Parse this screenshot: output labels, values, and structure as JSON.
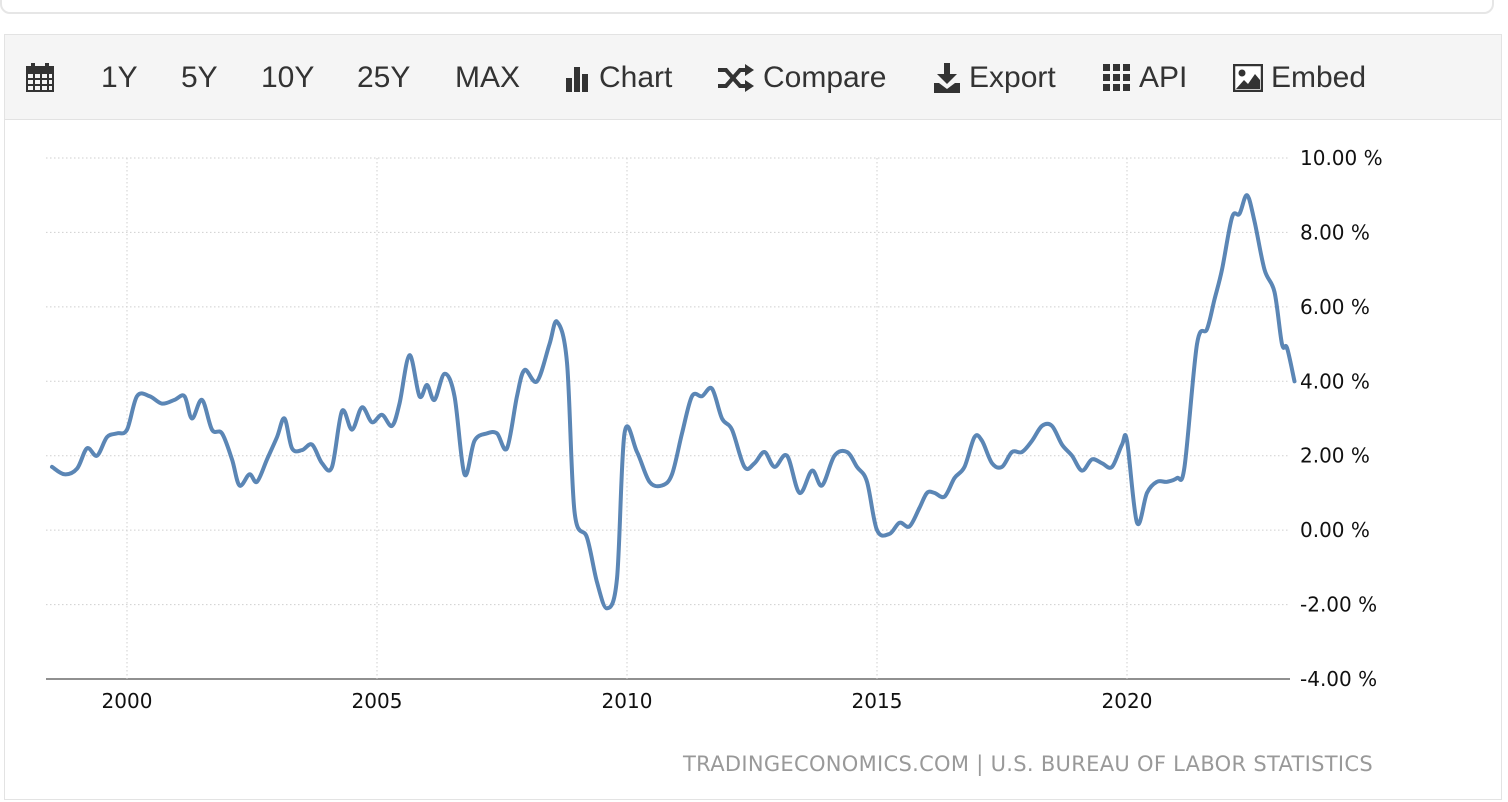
{
  "toolbar": {
    "calendar_icon": "calendar-icon",
    "items": [
      {
        "label": "1Y"
      },
      {
        "label": "5Y"
      },
      {
        "label": "10Y"
      },
      {
        "label": "25Y"
      },
      {
        "label": "MAX"
      },
      {
        "label": "Chart",
        "icon": "bar-chart-icon"
      },
      {
        "label": "Compare",
        "icon": "shuffle-icon"
      },
      {
        "label": "Export",
        "icon": "download-icon"
      },
      {
        "label": "API",
        "icon": "grid-icon"
      },
      {
        "label": "Embed",
        "icon": "image-icon"
      }
    ]
  },
  "chart_data": {
    "type": "line",
    "color": "#5b86b5",
    "ylim": [
      -4,
      10
    ],
    "xlim": [
      1998.5,
      2023.35
    ],
    "y_ticks": [
      {
        "value": 10,
        "label": "10.00 %"
      },
      {
        "value": 8,
        "label": "8.00 %"
      },
      {
        "value": 6,
        "label": "6.00 %"
      },
      {
        "value": 4,
        "label": "4.00 %"
      },
      {
        "value": 2,
        "label": "2.00 %"
      },
      {
        "value": 0,
        "label": "0.00 %"
      },
      {
        "value": -2,
        "label": "-2.00 %"
      },
      {
        "value": -4,
        "label": "-4.00 %"
      }
    ],
    "x_ticks": [
      {
        "value": 2000,
        "label": "2000"
      },
      {
        "value": 2005,
        "label": "2005"
      },
      {
        "value": 2010,
        "label": "2010"
      },
      {
        "value": 2015,
        "label": "2015"
      },
      {
        "value": 2020,
        "label": "2020"
      }
    ],
    "grid": true,
    "source": "TRADINGECONOMICS.COM | U.S. BUREAU OF LABOR STATISTICS",
    "series": [
      {
        "x": [
          1998.5,
          1998.75,
          1999.0,
          1999.2,
          1999.4,
          1999.6,
          1999.8,
          2000.0,
          2000.2,
          2000.45,
          2000.7,
          2000.95,
          2001.15,
          2001.3,
          2001.5,
          2001.7,
          2001.9,
          2002.1,
          2002.25,
          2002.45,
          2002.6,
          2002.8,
          2003.0,
          2003.15,
          2003.3,
          2003.5,
          2003.7,
          2003.9,
          2004.1,
          2004.3,
          2004.5,
          2004.7,
          2004.9,
          2005.1,
          2005.3,
          2005.45,
          2005.65,
          2005.85,
          2006.0,
          2006.15,
          2006.35,
          2006.55,
          2006.75,
          2006.95,
          2007.2,
          2007.4,
          2007.6,
          2007.8,
          2007.95,
          2008.2,
          2008.45,
          2008.6,
          2008.8,
          2008.95,
          2009.2,
          2009.4,
          2009.6,
          2009.8,
          2009.95,
          2010.2,
          2010.45,
          2010.7,
          2010.9,
          2011.1,
          2011.3,
          2011.5,
          2011.7,
          2011.9,
          2012.1,
          2012.35,
          2012.55,
          2012.75,
          2012.95,
          2013.2,
          2013.45,
          2013.7,
          2013.9,
          2014.15,
          2014.4,
          2014.6,
          2014.8,
          2015.0,
          2015.25,
          2015.45,
          2015.65,
          2015.85,
          2016.0,
          2016.15,
          2016.35,
          2016.55,
          2016.75,
          2016.95,
          2017.1,
          2017.3,
          2017.5,
          2017.7,
          2017.9,
          2018.1,
          2018.3,
          2018.5,
          2018.7,
          2018.9,
          2019.1,
          2019.3,
          2019.5,
          2019.7,
          2019.9,
          2020.0,
          2020.2,
          2020.4,
          2020.6,
          2020.8,
          2021.0,
          2021.15,
          2021.4,
          2021.6,
          2021.75,
          2021.9,
          2022.1,
          2022.25,
          2022.4,
          2022.55,
          2022.75,
          2022.95,
          2023.1,
          2023.2,
          2023.35
        ],
        "values": [
          1.7,
          1.5,
          1.65,
          2.2,
          2.0,
          2.5,
          2.6,
          2.7,
          3.6,
          3.6,
          3.4,
          3.5,
          3.6,
          3.0,
          3.5,
          2.7,
          2.6,
          1.9,
          1.2,
          1.5,
          1.3,
          1.9,
          2.5,
          3.0,
          2.2,
          2.15,
          2.3,
          1.8,
          1.7,
          3.2,
          2.7,
          3.3,
          2.9,
          3.1,
          2.8,
          3.4,
          4.7,
          3.6,
          3.9,
          3.5,
          4.2,
          3.6,
          1.5,
          2.4,
          2.6,
          2.6,
          2.2,
          3.6,
          4.3,
          4.0,
          5.0,
          5.6,
          4.5,
          0.5,
          -0.2,
          -1.4,
          -2.1,
          -1.3,
          2.6,
          2.1,
          1.3,
          1.2,
          1.5,
          2.6,
          3.6,
          3.6,
          3.8,
          3.0,
          2.7,
          1.7,
          1.8,
          2.1,
          1.7,
          2.0,
          1.0,
          1.6,
          1.2,
          2.0,
          2.1,
          1.7,
          1.3,
          0.0,
          -0.1,
          0.2,
          0.1,
          0.6,
          1.0,
          1.0,
          0.9,
          1.4,
          1.7,
          2.5,
          2.4,
          1.8,
          1.7,
          2.1,
          2.1,
          2.4,
          2.8,
          2.8,
          2.3,
          2.0,
          1.6,
          1.9,
          1.8,
          1.7,
          2.3,
          2.4,
          0.2,
          1.0,
          1.3,
          1.3,
          1.4,
          1.7,
          5.0,
          5.4,
          6.2,
          7.0,
          8.4,
          8.5,
          9.0,
          8.3,
          7.0,
          6.4,
          5.0,
          4.9,
          4.0
        ]
      }
    ]
  }
}
